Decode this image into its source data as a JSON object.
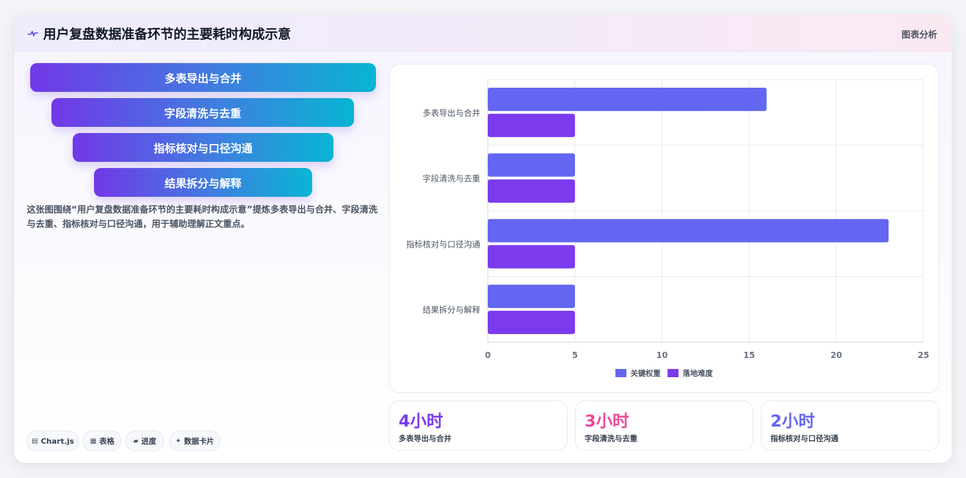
{
  "header": {
    "title": "用户复盘数据准备环节的主要耗时构成示意",
    "tag": "图表分析",
    "icon": "pulse-icon"
  },
  "funnel": {
    "steps": [
      "多表导出与合并",
      "字段清洗与去重",
      "指标核对与口径沟通",
      "结果拆分与解释"
    ]
  },
  "description": "这张图围绕“用户复盘数据准备环节的主要耗时构成示意”提炼多表导出与合并、字段清洗与去重、指标核对与口径沟通，用于辅助理解正文重点。",
  "chips": [
    {
      "icon": "monitor-icon",
      "glyph": "▤",
      "label": "Chart.js"
    },
    {
      "icon": "table-icon",
      "glyph": "▦",
      "label": "表格"
    },
    {
      "icon": "progress-icon",
      "glyph": "▰",
      "label": "进度"
    },
    {
      "icon": "sparkle-icon",
      "glyph": "✦",
      "label": "数据卡片"
    }
  ],
  "chart_data": {
    "type": "bar",
    "orientation": "horizontal",
    "categories": [
      "多表导出与合并",
      "字段清洗与去重",
      "指标核对与口径沟通",
      "结果拆分与解释"
    ],
    "series": [
      {
        "name": "关键权重",
        "values": [
          16,
          5,
          23,
          5
        ],
        "color": "#6366f1"
      },
      {
        "name": "落地难度",
        "values": [
          5,
          5,
          5,
          5
        ],
        "color": "#7c3aed"
      }
    ],
    "xlim": [
      0,
      25
    ],
    "xticks": [
      0,
      5,
      10,
      15,
      20,
      25
    ],
    "grid": true,
    "legend": "bottom"
  },
  "stats": [
    {
      "value": "4小时",
      "label": "多表导出与合并",
      "color": "#7c3aed"
    },
    {
      "value": "3小时",
      "label": "字段清洗与去重",
      "color": "#ec4899"
    },
    {
      "value": "2小时",
      "label": "指标核对与口径沟通",
      "color": "#6366f1"
    }
  ],
  "colors": {
    "accent_gradient_start": "#7138e8",
    "accent_gradient_end": "#08b5d2"
  }
}
